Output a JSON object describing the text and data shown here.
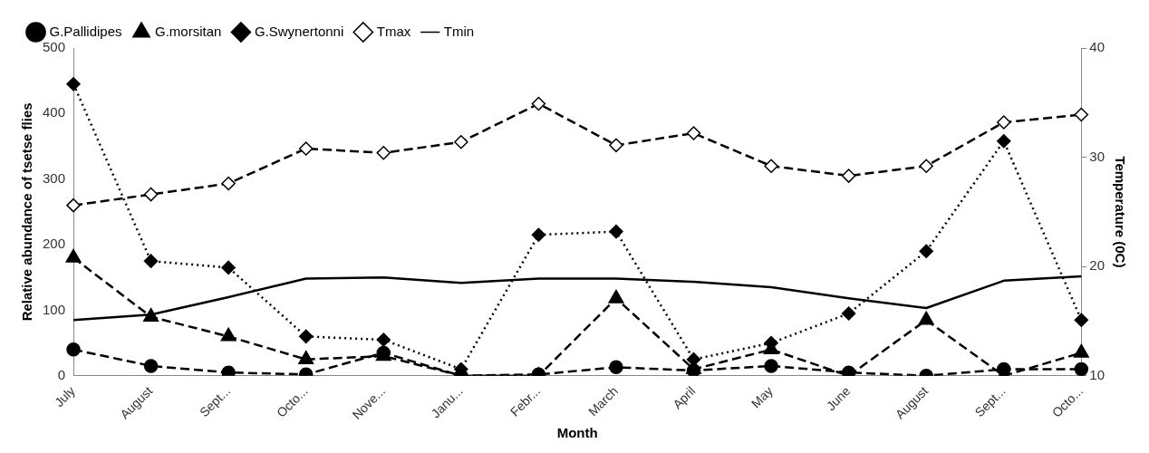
{
  "chart_data": {
    "type": "line",
    "xlabel": "Month",
    "ylabel": "Relative abundance of tsetse flies",
    "y2label": "Temperature (0C)",
    "categories": [
      "July",
      "August",
      "Sept...",
      "Octo...",
      "Nove...",
      "Janu...",
      "Febr...",
      "March",
      "April",
      "May",
      "June",
      "August",
      "Sept...",
      "Octo..."
    ],
    "series": [
      {
        "name": "G.Pallidipes",
        "color": "#000000",
        "marker": "circle",
        "line_style": "dashed",
        "values": [
          40,
          15,
          5,
          2,
          35,
          0,
          2,
          13,
          8,
          15,
          5,
          0,
          10,
          10
        ]
      },
      {
        "name": "G.morsitan",
        "color": "#000000",
        "marker": "triangle",
        "line_style": "dashed",
        "values": [
          180,
          90,
          60,
          25,
          30,
          0,
          0,
          118,
          10,
          40,
          0,
          85,
          0,
          35
        ]
      },
      {
        "name": "G.Swynertonni",
        "color": "#000000",
        "marker": "diamond",
        "line_style": "dotted",
        "values": [
          445,
          175,
          165,
          60,
          55,
          10,
          215,
          220,
          25,
          50,
          95,
          190,
          358,
          85
        ]
      },
      {
        "name": "Tmax",
        "color": "#000000",
        "marker": "diamond",
        "line_style": "dashed",
        "axis": "y2",
        "values": [
          25.6,
          26.6,
          27.6,
          30.8,
          30.4,
          31.4,
          34.9,
          31.1,
          32.2,
          29.2,
          28.3,
          29.2,
          33.2,
          33.9
        ]
      },
      {
        "name": "Tmin",
        "color": "#000000",
        "marker": "none",
        "line_style": "solid",
        "axis": "y2",
        "values": [
          15.1,
          15.6,
          17.2,
          18.9,
          19.0,
          18.5,
          18.9,
          18.9,
          18.6,
          18.1,
          17.1,
          16.2,
          18.7,
          19.1
        ]
      }
    ],
    "ylim": [
      0,
      500
    ],
    "yticks": [
      0,
      100,
      200,
      300,
      400,
      500
    ],
    "y2lim": [
      10,
      40
    ],
    "y2ticks": [
      10,
      20,
      30,
      40
    ],
    "grid": false,
    "legend": "top left"
  }
}
